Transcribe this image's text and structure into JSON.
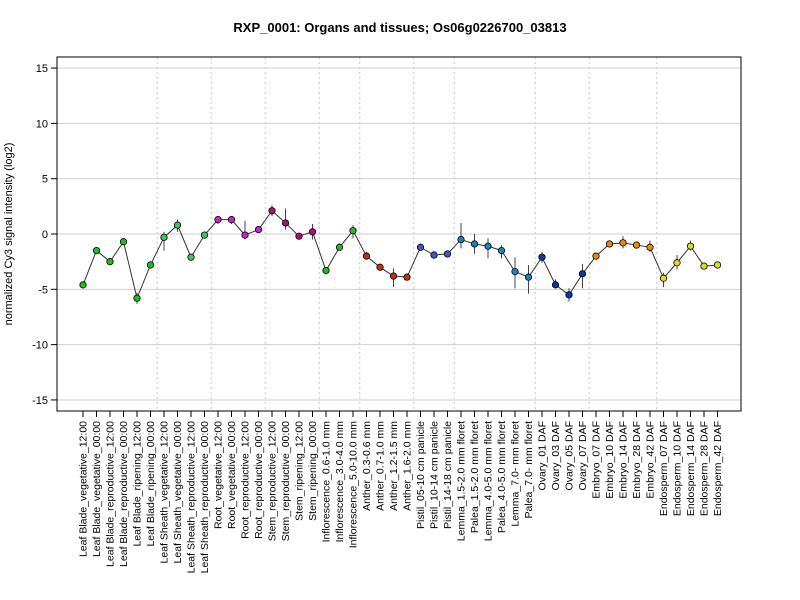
{
  "chart_data": {
    "type": "line",
    "title": "RXP_0001: Organs and tissues; Os06g0226700_03813",
    "ylabel": "normalized Cy3 signal intensity (log2)",
    "xlabel": "",
    "ylim": [
      -16,
      16
    ],
    "yticks": [
      -15,
      -10,
      -5,
      0,
      5,
      10,
      15
    ],
    "grid": true,
    "categories": [
      "Leaf Blade_vegetative_12:00",
      "Leaf Blade_vegetative_00:00",
      "Leaf Blade_reproductive_12:00",
      "Leaf Blade_reproductive_00:00",
      "Leaf Blade_ripening_12:00",
      "Leaf Blade_ripening_00:00",
      "Leaf Sheath_vegetative_12:00",
      "Leaf Sheath_vegetative_00:00",
      "Leaf Sheath_reproductive_12:00",
      "Leaf Sheath_reproductive_00:00",
      "Root_vegetative_12:00",
      "Root_vegetative_00:00",
      "Root_reproductive_12:00",
      "Root_reproductive_00:00",
      "Stem_reproductive_12:00",
      "Stem_reproductive_00:00",
      "Stem_ripening_12:00",
      "Stem_ripening_00:00",
      "Inflorescence_0.6-1.0 mm",
      "Inflorescence_3.0-4.0 mm",
      "Inflorescence_5.0-10.0 mm",
      "Anther_0.3-0.6 mm",
      "Anther_0.7-1.0 mm",
      "Anther_1.2-1.5 mm",
      "Anther_1.6-2.0 mm",
      "Pistil_05-10 cm panicle",
      "Pistil_10-14 cm panicle",
      "Pistil_14-18 cm panicle",
      "Lemma_1.5-2.0 mm floret",
      "Palea_1.5-2.0 mm floret",
      "Lemma_4.0-5.0 mm floret",
      "Palea_4.0-5.0 mm floret",
      "Lemma_7.0- mm floret",
      "Palea_7.0- mm floret",
      "Ovary_01 DAF",
      "Ovary_03 DAF",
      "Ovary_05 DAF",
      "Ovary_07 DAF",
      "Embryo_07 DAF",
      "Embryo_10 DAF",
      "Embryo_14 DAF",
      "Embryo_28 DAF",
      "Embryo_42 DAF",
      "Endosperm_07 DAF",
      "Endosperm_10 DAF",
      "Endosperm_14 DAF",
      "Endosperm_28 DAF",
      "Endosperm_42 DAF"
    ],
    "values": [
      -4.6,
      -1.5,
      -2.5,
      -0.7,
      -5.8,
      -2.8,
      -0.3,
      0.8,
      -2.1,
      -0.1,
      1.3,
      1.3,
      -0.1,
      0.4,
      2.1,
      1.0,
      -0.2,
      0.2,
      -3.3,
      -1.2,
      0.3,
      -2.0,
      -3.0,
      -3.8,
      -3.9,
      -1.2,
      -1.9,
      -1.8,
      -0.5,
      -0.9,
      -1.1,
      -1.5,
      -3.4,
      -3.9,
      -2.1,
      -4.6,
      -5.5,
      -3.6,
      -2.0,
      -0.9,
      -0.8,
      -1.0,
      -1.2,
      -4.0,
      -2.6,
      -1.1,
      -2.9,
      -2.8
    ],
    "err_low": [
      -4.9,
      -1.7,
      -2.7,
      -0.8,
      -6.3,
      -3.0,
      -1.5,
      0.2,
      -2.3,
      -0.3,
      0.9,
      0.9,
      -0.5,
      0.2,
      1.6,
      0.4,
      -0.4,
      -0.5,
      -3.5,
      -1.4,
      -0.4,
      -2.2,
      -3.2,
      -4.8,
      -4.1,
      -1.4,
      -2.1,
      -2.0,
      -1.3,
      -1.8,
      -2.2,
      -2.2,
      -4.9,
      -5.4,
      -2.6,
      -4.9,
      -6.1,
      -4.9,
      -2.2,
      -1.1,
      -1.3,
      -1.2,
      -1.6,
      -4.8,
      -3.2,
      -1.5,
      -3.2,
      -3.0
    ],
    "err_high": [
      -4.3,
      -1.2,
      -2.3,
      -0.5,
      -5.3,
      -2.6,
      0.2,
      1.3,
      -1.9,
      0.1,
      1.6,
      1.6,
      1.2,
      0.6,
      2.6,
      2.3,
      0.0,
      0.9,
      -3.1,
      -1.0,
      0.8,
      -1.6,
      -2.8,
      -3.1,
      -3.7,
      -1.0,
      -1.7,
      -1.6,
      1.0,
      0.0,
      -0.4,
      -1.0,
      -2.1,
      -2.8,
      -1.6,
      -4.1,
      -4.9,
      -2.7,
      -1.7,
      -0.7,
      -0.2,
      -0.8,
      -0.6,
      -3.5,
      -1.9,
      -0.6,
      -2.6,
      -2.6
    ],
    "groups": [
      {
        "color": "#22bb22",
        "count": 6
      },
      {
        "color": "#33cc55",
        "count": 4
      },
      {
        "color": "#cc22cc",
        "count": 4
      },
      {
        "color": "#aa1177",
        "count": 4
      },
      {
        "color": "#22bb22",
        "count": 3
      },
      {
        "color": "#bb3311",
        "count": 4
      },
      {
        "color": "#4455cc",
        "count": 3
      },
      {
        "color": "#1188bb",
        "count": 6
      },
      {
        "color": "#1133aa",
        "count": 4
      },
      {
        "color": "#ee8811",
        "count": 5
      },
      {
        "color": "#dddd22",
        "count": 5
      }
    ]
  }
}
